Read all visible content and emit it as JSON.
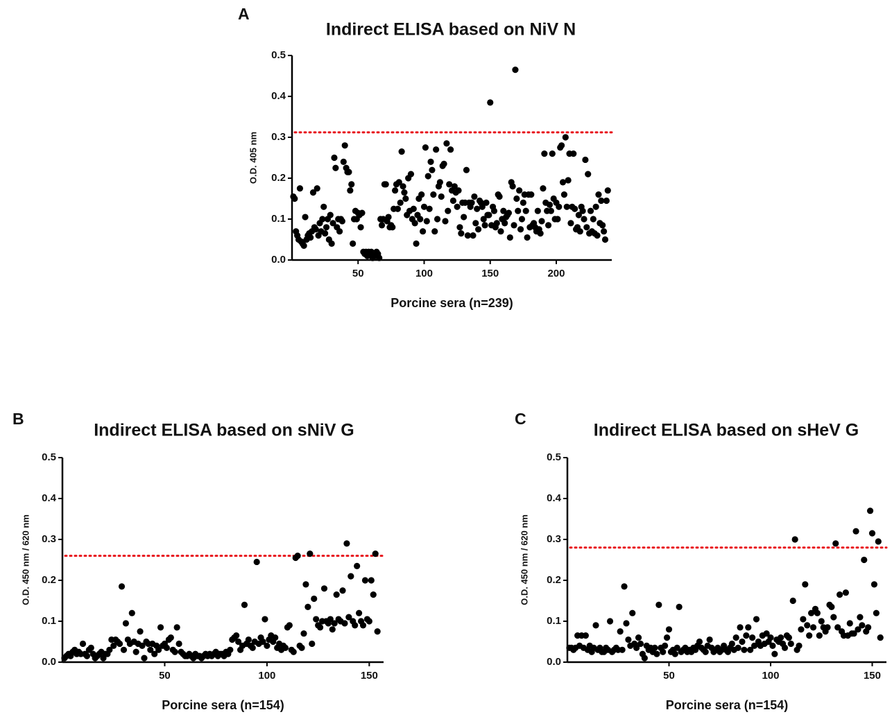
{
  "chart_data": [
    {
      "type": "scatter",
      "panel_label": "A",
      "title": "Indirect ELISA based on NiV N",
      "xlabel": "Porcine sera (n=239)",
      "ylabel": "O.D. 405 nm",
      "color": "#000000",
      "threshold": 0.312,
      "threshold_color": "#e8141b",
      "xlim": [
        0,
        242
      ],
      "ylim": [
        0,
        0.5
      ],
      "xticks": [
        50,
        100,
        150,
        200
      ],
      "yticks": [
        {
          "value": 0,
          "label": "0.0"
        },
        0.1,
        0.2,
        0.3,
        0.4,
        0.5
      ],
      "x": [
        1,
        2,
        3,
        4,
        5,
        6,
        7,
        8,
        9,
        10,
        11,
        12,
        13,
        14,
        15,
        16,
        17,
        18,
        19,
        20,
        21,
        22,
        23,
        24,
        25,
        26,
        27,
        28,
        29,
        30,
        31,
        32,
        33,
        34,
        35,
        36,
        37,
        38,
        39,
        40,
        41,
        42,
        43,
        44,
        45,
        46,
        47,
        48,
        49,
        50,
        51,
        52,
        53,
        54,
        55,
        56,
        57,
        58,
        59,
        60,
        61,
        62,
        63,
        64,
        65,
        66,
        67,
        68,
        69,
        70,
        71,
        72,
        73,
        74,
        75,
        76,
        77,
        78,
        79,
        80,
        81,
        82,
        83,
        84,
        85,
        86,
        87,
        88,
        89,
        90,
        91,
        92,
        93,
        94,
        95,
        96,
        97,
        98,
        99,
        100,
        101,
        102,
        103,
        104,
        105,
        106,
        107,
        108,
        109,
        110,
        111,
        112,
        113,
        114,
        115,
        116,
        117,
        118,
        119,
        120,
        121,
        122,
        123,
        124,
        125,
        126,
        127,
        128,
        129,
        130,
        131,
        132,
        133,
        134,
        135,
        136,
        137,
        138,
        139,
        140,
        141,
        142,
        143,
        144,
        145,
        146,
        147,
        148,
        149,
        150,
        151,
        152,
        153,
        154,
        155,
        156,
        157,
        158,
        159,
        160,
        161,
        162,
        163,
        164,
        165,
        166,
        167,
        168,
        169,
        170,
        171,
        172,
        173,
        174,
        175,
        176,
        177,
        178,
        179,
        180,
        181,
        182,
        183,
        184,
        185,
        186,
        187,
        188,
        189,
        190,
        191,
        192,
        193,
        194,
        195,
        196,
        197,
        198,
        199,
        200,
        201,
        202,
        203,
        204,
        205,
        206,
        207,
        208,
        209,
        210,
        211,
        212,
        213,
        214,
        215,
        216,
        217,
        218,
        219,
        220,
        221,
        222,
        223,
        224,
        225,
        226,
        227,
        228,
        229,
        230,
        231,
        232,
        233,
        234,
        235,
        236,
        237,
        238,
        239
      ],
      "values": [
        0.155,
        0.15,
        0.07,
        0.06,
        0.05,
        0.175,
        0.045,
        0.04,
        0.035,
        0.105,
        0.05,
        0.06,
        0.065,
        0.055,
        0.07,
        0.165,
        0.08,
        0.075,
        0.175,
        0.06,
        0.09,
        0.07,
        0.1,
        0.13,
        0.065,
        0.08,
        0.1,
        0.05,
        0.11,
        0.04,
        0.09,
        0.25,
        0.225,
        0.08,
        0.1,
        0.07,
        0.1,
        0.095,
        0.24,
        0.28,
        0.225,
        0.215,
        0.215,
        0.17,
        0.185,
        0.04,
        0.1,
        0.12,
        0.1,
        0.115,
        0.11,
        0.08,
        0.115,
        0.02,
        0.015,
        0.02,
        0.01,
        0.02,
        0.015,
        0.02,
        0.005,
        0.015,
        0.01,
        0.02,
        0.015,
        0.005,
        0.1,
        0.085,
        0.1,
        0.185,
        0.185,
        0.095,
        0.105,
        0.08,
        0.085,
        0.08,
        0.125,
        0.17,
        0.185,
        0.125,
        0.19,
        0.14,
        0.265,
        0.18,
        0.165,
        0.15,
        0.11,
        0.2,
        0.12,
        0.21,
        0.1,
        0.125,
        0.09,
        0.04,
        0.11,
        0.15,
        0.1,
        0.16,
        0.07,
        0.13,
        0.275,
        0.095,
        0.205,
        0.125,
        0.24,
        0.22,
        0.16,
        0.07,
        0.27,
        0.1,
        0.18,
        0.19,
        0.155,
        0.23,
        0.235,
        0.095,
        0.285,
        0.12,
        0.185,
        0.27,
        0.17,
        0.145,
        0.18,
        0.165,
        0.13,
        0.17,
        0.08,
        0.065,
        0.14,
        0.105,
        0.14,
        0.22,
        0.06,
        0.14,
        0.13,
        0.14,
        0.06,
        0.155,
        0.09,
        0.125,
        0.075,
        0.145,
        0.14,
        0.13,
        0.1,
        0.085,
        0.14,
        0.11,
        0.11,
        0.385,
        0.085,
        0.13,
        0.12,
        0.08,
        0.09,
        0.16,
        0.155,
        0.07,
        0.1,
        0.12,
        0.09,
        0.105,
        0.11,
        0.115,
        0.055,
        0.19,
        0.18,
        0.085,
        0.465,
        0.15,
        0.12,
        0.17,
        0.075,
        0.1,
        0.14,
        0.16,
        0.12,
        0.055,
        0.16,
        0.08,
        0.16,
        0.085,
        0.09,
        0.08,
        0.07,
        0.12,
        0.075,
        0.065,
        0.095,
        0.175,
        0.26,
        0.14,
        0.12,
        0.085,
        0.135,
        0.12,
        0.26,
        0.15,
        0.1,
        0.14,
        0.1,
        0.13,
        0.275,
        0.28,
        0.19,
        0.16,
        0.3,
        0.13,
        0.195,
        0.26,
        0.09,
        0.13,
        0.26,
        0.125,
        0.075,
        0.08,
        0.11,
        0.07,
        0.13,
        0.12,
        0.1,
        0.245,
        0.08,
        0.21,
        0.065,
        0.12,
        0.07,
        0.1,
        0.065,
        0.13,
        0.06,
        0.16,
        0.09,
        0.145,
        0.085,
        0.07,
        0.05,
        0.145,
        0.17
      ]
    },
    {
      "type": "scatter",
      "panel_label": "B",
      "title": "Indirect ELISA based on sNiV G",
      "xlabel": "Porcine sera (n=154)",
      "ylabel": "O.D. 450 nm / 620 nm",
      "color": "#000000",
      "threshold": 0.26,
      "threshold_color": "#e8141b",
      "xlim": [
        0,
        157
      ],
      "ylim": [
        0,
        0.5
      ],
      "xticks": [
        50,
        100,
        150
      ],
      "yticks": [
        {
          "value": 0,
          "label": "0.0"
        },
        0.1,
        0.2,
        0.3,
        0.4,
        0.5
      ],
      "x": [
        1,
        2,
        3,
        4,
        5,
        6,
        7,
        8,
        9,
        10,
        11,
        12,
        13,
        14,
        15,
        16,
        17,
        18,
        19,
        20,
        21,
        22,
        23,
        24,
        25,
        26,
        27,
        28,
        29,
        30,
        31,
        32,
        33,
        34,
        35,
        36,
        37,
        38,
        39,
        40,
        41,
        42,
        43,
        44,
        45,
        46,
        47,
        48,
        49,
        50,
        51,
        52,
        53,
        54,
        55,
        56,
        57,
        58,
        59,
        60,
        61,
        62,
        63,
        64,
        65,
        66,
        67,
        68,
        69,
        70,
        71,
        72,
        73,
        74,
        75,
        76,
        77,
        78,
        79,
        80,
        81,
        82,
        83,
        84,
        85,
        86,
        87,
        88,
        89,
        90,
        91,
        92,
        93,
        94,
        95,
        96,
        97,
        98,
        99,
        100,
        101,
        102,
        103,
        104,
        105,
        106,
        107,
        108,
        109,
        110,
        111,
        112,
        113,
        114,
        115,
        116,
        117,
        118,
        119,
        120,
        121,
        122,
        123,
        124,
        125,
        126,
        127,
        128,
        129,
        130,
        131,
        132,
        133,
        134,
        135,
        136,
        137,
        138,
        139,
        140,
        141,
        142,
        143,
        144,
        145,
        146,
        147,
        148,
        149,
        150,
        151,
        152,
        153,
        154
      ],
      "values": [
        0.01,
        0.015,
        0.02,
        0.015,
        0.025,
        0.03,
        0.02,
        0.025,
        0.02,
        0.045,
        0.02,
        0.015,
        0.03,
        0.035,
        0.02,
        0.01,
        0.015,
        0.02,
        0.025,
        0.01,
        0.02,
        0.02,
        0.03,
        0.055,
        0.04,
        0.055,
        0.05,
        0.045,
        0.185,
        0.03,
        0.095,
        0.055,
        0.045,
        0.12,
        0.05,
        0.025,
        0.045,
        0.075,
        0.04,
        0.01,
        0.05,
        0.045,
        0.03,
        0.045,
        0.02,
        0.04,
        0.03,
        0.085,
        0.04,
        0.045,
        0.035,
        0.055,
        0.06,
        0.03,
        0.025,
        0.085,
        0.045,
        0.025,
        0.02,
        0.015,
        0.015,
        0.02,
        0.015,
        0.01,
        0.02,
        0.015,
        0.015,
        0.01,
        0.015,
        0.02,
        0.015,
        0.02,
        0.015,
        0.02,
        0.025,
        0.015,
        0.02,
        0.02,
        0.015,
        0.025,
        0.02,
        0.03,
        0.055,
        0.06,
        0.065,
        0.05,
        0.03,
        0.04,
        0.14,
        0.045,
        0.055,
        0.04,
        0.035,
        0.05,
        0.245,
        0.045,
        0.06,
        0.05,
        0.105,
        0.04,
        0.055,
        0.065,
        0.05,
        0.06,
        0.035,
        0.045,
        0.03,
        0.04,
        0.035,
        0.085,
        0.09,
        0.03,
        0.025,
        0.255,
        0.26,
        0.04,
        0.035,
        0.07,
        0.19,
        0.135,
        0.265,
        0.045,
        0.155,
        0.105,
        0.09,
        0.085,
        0.1,
        0.18,
        0.1,
        0.095,
        0.105,
        0.08,
        0.095,
        0.165,
        0.105,
        0.1,
        0.175,
        0.095,
        0.29,
        0.11,
        0.21,
        0.1,
        0.09,
        0.235,
        0.12,
        0.1,
        0.09,
        0.2,
        0.105,
        0.1,
        0.2,
        0.165,
        0.265,
        0.075
      ]
    },
    {
      "type": "scatter",
      "panel_label": "C",
      "title": "Indirect ELISA based on sHeV G",
      "xlabel": "Porcine sera (n=154)",
      "ylabel": "O.D. 450 nm / 620 nm",
      "color": "#000000",
      "threshold": 0.28,
      "threshold_color": "#e8141b",
      "xlim": [
        0,
        157
      ],
      "ylim": [
        0,
        0.5
      ],
      "xticks": [
        50,
        100,
        150
      ],
      "yticks": [
        {
          "value": 0,
          "label": "0.0"
        },
        0.1,
        0.2,
        0.3,
        0.4,
        0.5
      ],
      "x": [
        1,
        2,
        3,
        4,
        5,
        6,
        7,
        8,
        9,
        10,
        11,
        12,
        13,
        14,
        15,
        16,
        17,
        18,
        19,
        20,
        21,
        22,
        23,
        24,
        25,
        26,
        27,
        28,
        29,
        30,
        31,
        32,
        33,
        34,
        35,
        36,
        37,
        38,
        39,
        40,
        41,
        42,
        43,
        44,
        45,
        46,
        47,
        48,
        49,
        50,
        51,
        52,
        53,
        54,
        55,
        56,
        57,
        58,
        59,
        60,
        61,
        62,
        63,
        64,
        65,
        66,
        67,
        68,
        69,
        70,
        71,
        72,
        73,
        74,
        75,
        76,
        77,
        78,
        79,
        80,
        81,
        82,
        83,
        84,
        85,
        86,
        87,
        88,
        89,
        90,
        91,
        92,
        93,
        94,
        95,
        96,
        97,
        98,
        99,
        100,
        101,
        102,
        103,
        104,
        105,
        106,
        107,
        108,
        109,
        110,
        111,
        112,
        113,
        114,
        115,
        116,
        117,
        118,
        119,
        120,
        121,
        122,
        123,
        124,
        125,
        126,
        127,
        128,
        129,
        130,
        131,
        132,
        133,
        134,
        135,
        136,
        137,
        138,
        139,
        140,
        141,
        142,
        143,
        144,
        145,
        146,
        147,
        148,
        149,
        150,
        151,
        152,
        153,
        154
      ],
      "values": [
        0.035,
        0.035,
        0.03,
        0.035,
        0.065,
        0.04,
        0.065,
        0.035,
        0.065,
        0.03,
        0.04,
        0.025,
        0.035,
        0.09,
        0.03,
        0.035,
        0.025,
        0.025,
        0.035,
        0.03,
        0.1,
        0.025,
        0.03,
        0.035,
        0.03,
        0.075,
        0.03,
        0.185,
        0.095,
        0.055,
        0.04,
        0.12,
        0.045,
        0.035,
        0.06,
        0.045,
        0.02,
        0.01,
        0.04,
        0.03,
        0.035,
        0.025,
        0.035,
        0.02,
        0.14,
        0.035,
        0.025,
        0.04,
        0.06,
        0.08,
        0.025,
        0.03,
        0.02,
        0.035,
        0.135,
        0.025,
        0.03,
        0.035,
        0.025,
        0.03,
        0.025,
        0.035,
        0.03,
        0.04,
        0.05,
        0.035,
        0.03,
        0.025,
        0.04,
        0.055,
        0.035,
        0.025,
        0.03,
        0.035,
        0.025,
        0.03,
        0.04,
        0.03,
        0.025,
        0.035,
        0.045,
        0.03,
        0.06,
        0.035,
        0.085,
        0.05,
        0.03,
        0.065,
        0.085,
        0.03,
        0.06,
        0.04,
        0.105,
        0.05,
        0.04,
        0.065,
        0.045,
        0.07,
        0.05,
        0.06,
        0.04,
        0.02,
        0.055,
        0.05,
        0.06,
        0.045,
        0.035,
        0.065,
        0.06,
        0.045,
        0.15,
        0.3,
        0.03,
        0.04,
        0.08,
        0.105,
        0.19,
        0.09,
        0.065,
        0.12,
        0.085,
        0.13,
        0.12,
        0.065,
        0.1,
        0.085,
        0.075,
        0.085,
        0.14,
        0.135,
        0.11,
        0.29,
        0.085,
        0.165,
        0.075,
        0.065,
        0.17,
        0.065,
        0.095,
        0.07,
        0.07,
        0.32,
        0.08,
        0.11,
        0.09,
        0.25,
        0.075,
        0.085,
        0.37,
        0.315,
        0.19,
        0.12,
        0.295,
        0.06
      ]
    }
  ]
}
